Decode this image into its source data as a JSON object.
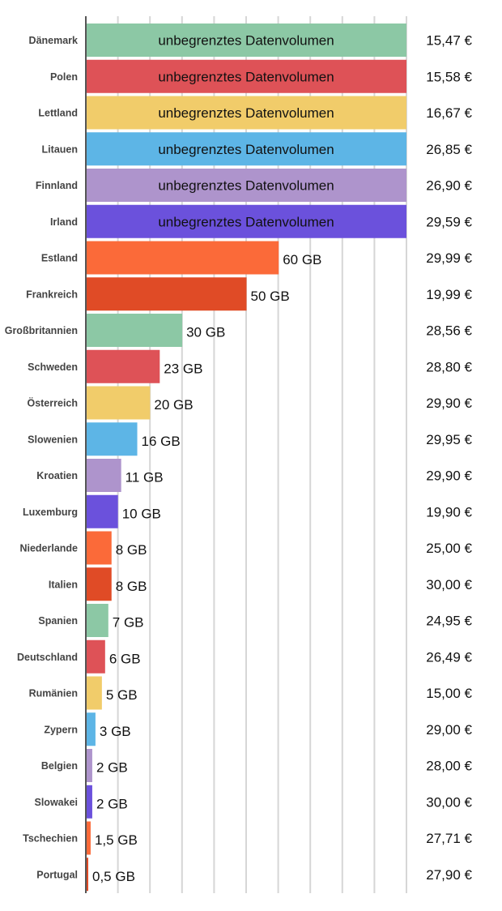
{
  "chart_data": {
    "type": "bar",
    "orientation": "horizontal",
    "xlabel": "",
    "ylabel": "",
    "unit": "GB",
    "grid": true,
    "categories": [
      "Dänemark",
      "Polen",
      "Lettland",
      "Litauen",
      "Finnland",
      "Irland",
      "Estland",
      "Frankreich",
      "Großbritannien",
      "Schweden",
      "Österreich",
      "Slowenien",
      "Kroatien",
      "Luxemburg",
      "Niederlande",
      "Italien",
      "Spanien",
      "Deutschland",
      "Rumänien",
      "Zypern",
      "Belgien",
      "Slowakei",
      "Tschechien",
      "Portugal"
    ],
    "values": [
      null,
      null,
      null,
      null,
      null,
      null,
      60,
      50,
      30,
      23,
      20,
      16,
      11,
      10,
      8,
      8,
      7,
      6,
      5,
      3,
      2,
      2,
      1.5,
      0.5
    ],
    "bar_labels": [
      "unbegrenztes Datenvolumen",
      "unbegrenztes Datenvolumen",
      "unbegrenztes Datenvolumen",
      "unbegrenztes Datenvolumen",
      "unbegrenztes Datenvolumen",
      "unbegrenztes Datenvolumen",
      "60 GB",
      "50 GB",
      "30 GB",
      "23 GB",
      "20 GB",
      "16 GB",
      "11 GB",
      "10 GB",
      "8 GB",
      "8 GB",
      "7 GB",
      "6 GB",
      "5 GB",
      "3 GB",
      "2  GB",
      "2 GB",
      "1,5 GB",
      "0,5 GB"
    ],
    "prices": [
      "15,47 €",
      "15,58 €",
      "16,67 €",
      "26,85 €",
      "26,90 €",
      "29,59 €",
      "29,99 €",
      "19,99 €",
      "28,56 €",
      "28,80 €",
      "29,90 €",
      "29,95 €",
      "29,90 €",
      "19,90 €",
      "25,00 €",
      "30,00 €",
      "24,95 €",
      "26,49 €",
      "15,00 €",
      "29,00 €",
      "28,00 €",
      "30,00 €",
      "27,71 €",
      "27,90 €"
    ],
    "unlimited": [
      true,
      true,
      true,
      true,
      true,
      true,
      false,
      false,
      false,
      false,
      false,
      false,
      false,
      false,
      false,
      false,
      false,
      false,
      false,
      false,
      false,
      false,
      false,
      false
    ],
    "colors": [
      "#8cc8a5",
      "#de5257",
      "#f1cc6a",
      "#5db5e6",
      "#ae94cc",
      "#6b51dc",
      "#fb6a39",
      "#e04b26",
      "#8cc8a5",
      "#de5257",
      "#f1cc6a",
      "#5db5e6",
      "#ae94cc",
      "#6b51dc",
      "#fb6a39",
      "#e04b26",
      "#8cc8a5",
      "#de5257",
      "#f1cc6a",
      "#5db5e6",
      "#ae94cc",
      "#6b51dc",
      "#fb6a39",
      "#e04b26"
    ]
  }
}
